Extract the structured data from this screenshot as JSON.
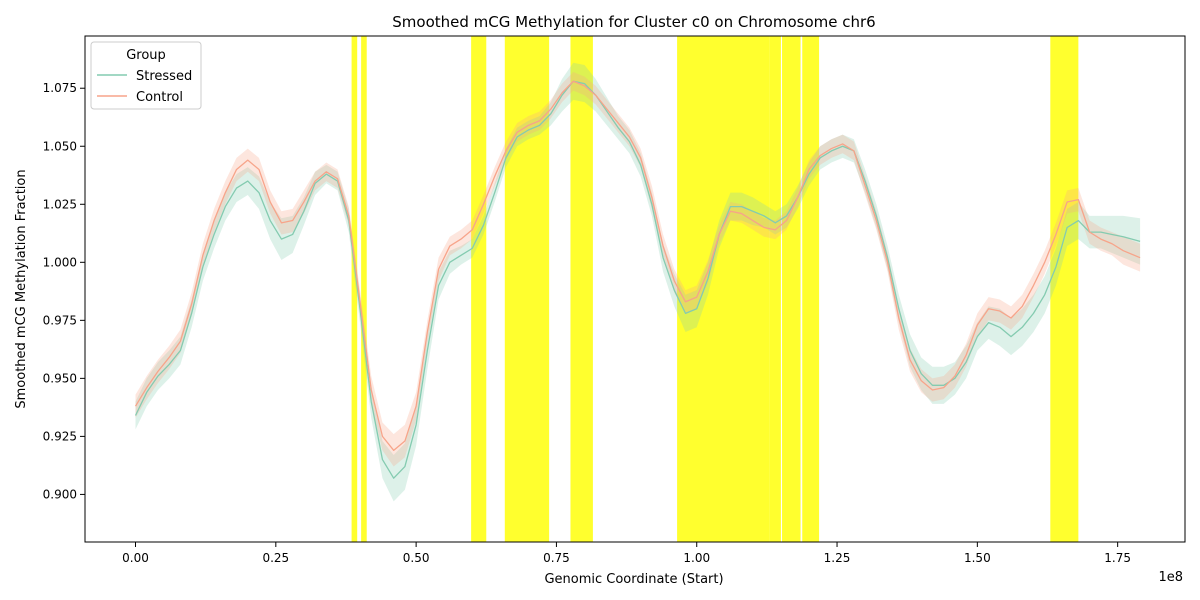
{
  "chart_data": {
    "type": "line",
    "title": "Smoothed mCG Methylation for Cluster c0 on Chromosome chr6",
    "xlabel": "Genomic Coordinate (Start)",
    "ylabel": "Smoothed mCG Methylation Fraction",
    "x_scale_label": "1e8",
    "x_multiplier": 100000000,
    "xlim": [
      -0.09,
      1.87
    ],
    "ylim": [
      0.8795,
      1.0975
    ],
    "x_ticks": [
      0.0,
      0.25,
      0.5,
      0.75,
      1.0,
      1.25,
      1.5,
      1.75
    ],
    "x_tick_labels": [
      "0.00",
      "0.25",
      "0.50",
      "0.75",
      "1.00",
      "1.25",
      "1.50",
      "1.75"
    ],
    "y_ticks": [
      0.9,
      0.925,
      0.95,
      0.975,
      1.0,
      1.025,
      1.05,
      1.075
    ],
    "y_tick_labels": [
      "0.900",
      "0.925",
      "0.950",
      "0.975",
      "1.000",
      "1.025",
      "1.050",
      "1.075"
    ],
    "grid": false,
    "legend": {
      "title": "Group",
      "placement": "top-left"
    },
    "highlight_color": "#ffff00",
    "highlight_regions": [
      [
        0.385,
        0.395
      ],
      [
        0.402,
        0.412
      ],
      [
        0.598,
        0.625
      ],
      [
        0.658,
        0.737
      ],
      [
        0.775,
        0.815
      ],
      [
        0.965,
        1.13
      ],
      [
        1.13,
        1.15
      ],
      [
        1.152,
        1.185
      ],
      [
        1.188,
        1.218
      ],
      [
        1.63,
        1.68
      ]
    ],
    "series": [
      {
        "name": "Stressed",
        "color": "#84cbb0",
        "x": [
          0.0,
          0.02,
          0.04,
          0.06,
          0.08,
          0.1,
          0.12,
          0.14,
          0.16,
          0.18,
          0.2,
          0.22,
          0.24,
          0.26,
          0.28,
          0.3,
          0.32,
          0.34,
          0.36,
          0.38,
          0.4,
          0.42,
          0.44,
          0.46,
          0.48,
          0.5,
          0.52,
          0.54,
          0.56,
          0.58,
          0.6,
          0.62,
          0.64,
          0.66,
          0.68,
          0.7,
          0.72,
          0.74,
          0.76,
          0.78,
          0.8,
          0.82,
          0.84,
          0.86,
          0.88,
          0.9,
          0.92,
          0.94,
          0.96,
          0.98,
          1.0,
          1.02,
          1.04,
          1.06,
          1.08,
          1.1,
          1.12,
          1.14,
          1.16,
          1.18,
          1.2,
          1.22,
          1.24,
          1.26,
          1.28,
          1.3,
          1.32,
          1.34,
          1.36,
          1.38,
          1.4,
          1.42,
          1.44,
          1.46,
          1.48,
          1.5,
          1.52,
          1.54,
          1.56,
          1.58,
          1.6,
          1.62,
          1.64,
          1.66,
          1.68,
          1.7,
          1.72,
          1.74,
          1.76,
          1.79
        ],
        "values": [
          0.934,
          0.944,
          0.951,
          0.956,
          0.962,
          0.978,
          0.998,
          1.012,
          1.024,
          1.032,
          1.035,
          1.03,
          1.018,
          1.01,
          1.012,
          1.022,
          1.034,
          1.038,
          1.035,
          1.018,
          0.98,
          0.94,
          0.915,
          0.907,
          0.912,
          0.93,
          0.962,
          0.99,
          1.0,
          1.003,
          1.006,
          1.016,
          1.03,
          1.045,
          1.054,
          1.057,
          1.059,
          1.064,
          1.072,
          1.078,
          1.077,
          1.072,
          1.065,
          1.058,
          1.052,
          1.042,
          1.025,
          1.002,
          0.988,
          0.978,
          0.98,
          0.993,
          1.012,
          1.024,
          1.024,
          1.022,
          1.02,
          1.017,
          1.02,
          1.028,
          1.038,
          1.045,
          1.048,
          1.05,
          1.048,
          1.035,
          1.02,
          1.002,
          0.98,
          0.962,
          0.952,
          0.947,
          0.947,
          0.95,
          0.957,
          0.968,
          0.974,
          0.972,
          0.968,
          0.972,
          0.978,
          0.986,
          0.998,
          1.015,
          1.018,
          1.013,
          1.013,
          1.012,
          1.011,
          1.009
        ],
        "ci_halfwidth": [
          0.006,
          0.006,
          0.006,
          0.006,
          0.006,
          0.006,
          0.006,
          0.006,
          0.006,
          0.006,
          0.006,
          0.007,
          0.008,
          0.009,
          0.008,
          0.006,
          0.005,
          0.004,
          0.004,
          0.005,
          0.006,
          0.007,
          0.008,
          0.01,
          0.01,
          0.009,
          0.008,
          0.006,
          0.005,
          0.004,
          0.004,
          0.004,
          0.004,
          0.004,
          0.004,
          0.004,
          0.004,
          0.005,
          0.007,
          0.008,
          0.008,
          0.007,
          0.006,
          0.005,
          0.005,
          0.005,
          0.005,
          0.006,
          0.007,
          0.008,
          0.008,
          0.007,
          0.006,
          0.006,
          0.006,
          0.006,
          0.005,
          0.005,
          0.005,
          0.005,
          0.005,
          0.005,
          0.005,
          0.005,
          0.005,
          0.005,
          0.005,
          0.005,
          0.006,
          0.007,
          0.007,
          0.008,
          0.008,
          0.007,
          0.007,
          0.006,
          0.007,
          0.008,
          0.008,
          0.008,
          0.008,
          0.008,
          0.008,
          0.008,
          0.008,
          0.007,
          0.007,
          0.008,
          0.009,
          0.01
        ]
      },
      {
        "name": "Control",
        "color": "#f7a48a",
        "x": [
          0.0,
          0.02,
          0.04,
          0.06,
          0.08,
          0.1,
          0.12,
          0.14,
          0.16,
          0.18,
          0.2,
          0.22,
          0.24,
          0.26,
          0.28,
          0.3,
          0.32,
          0.34,
          0.36,
          0.38,
          0.4,
          0.42,
          0.44,
          0.46,
          0.48,
          0.5,
          0.52,
          0.54,
          0.56,
          0.58,
          0.6,
          0.62,
          0.64,
          0.66,
          0.68,
          0.7,
          0.72,
          0.74,
          0.76,
          0.78,
          0.8,
          0.82,
          0.84,
          0.86,
          0.88,
          0.9,
          0.92,
          0.94,
          0.96,
          0.98,
          1.0,
          1.02,
          1.04,
          1.06,
          1.08,
          1.1,
          1.12,
          1.14,
          1.16,
          1.18,
          1.2,
          1.22,
          1.24,
          1.26,
          1.28,
          1.3,
          1.32,
          1.34,
          1.36,
          1.38,
          1.4,
          1.42,
          1.44,
          1.46,
          1.48,
          1.5,
          1.52,
          1.54,
          1.56,
          1.58,
          1.6,
          1.62,
          1.64,
          1.66,
          1.68,
          1.7,
          1.72,
          1.74,
          1.76,
          1.79
        ],
        "values": [
          0.938,
          0.946,
          0.953,
          0.959,
          0.966,
          0.982,
          1.003,
          1.018,
          1.03,
          1.04,
          1.044,
          1.04,
          1.026,
          1.017,
          1.018,
          1.026,
          1.035,
          1.039,
          1.036,
          1.02,
          0.983,
          0.945,
          0.925,
          0.919,
          0.923,
          0.938,
          0.97,
          0.997,
          1.007,
          1.01,
          1.014,
          1.025,
          1.037,
          1.048,
          1.056,
          1.059,
          1.061,
          1.066,
          1.073,
          1.078,
          1.076,
          1.072,
          1.066,
          1.06,
          1.054,
          1.045,
          1.028,
          1.007,
          0.992,
          0.983,
          0.985,
          0.996,
          1.012,
          1.022,
          1.021,
          1.018,
          1.015,
          1.014,
          1.018,
          1.028,
          1.04,
          1.046,
          1.049,
          1.051,
          1.048,
          1.033,
          1.018,
          1.0,
          0.976,
          0.958,
          0.949,
          0.945,
          0.946,
          0.951,
          0.96,
          0.973,
          0.98,
          0.979,
          0.976,
          0.981,
          0.99,
          1.0,
          1.012,
          1.026,
          1.027,
          1.013,
          1.01,
          1.008,
          1.005,
          1.002
        ],
        "ci_halfwidth": [
          0.005,
          0.005,
          0.005,
          0.005,
          0.005,
          0.005,
          0.005,
          0.005,
          0.005,
          0.005,
          0.005,
          0.005,
          0.005,
          0.005,
          0.005,
          0.005,
          0.004,
          0.004,
          0.004,
          0.004,
          0.005,
          0.006,
          0.006,
          0.007,
          0.007,
          0.006,
          0.005,
          0.005,
          0.004,
          0.004,
          0.004,
          0.004,
          0.004,
          0.004,
          0.004,
          0.004,
          0.004,
          0.004,
          0.004,
          0.004,
          0.004,
          0.004,
          0.004,
          0.004,
          0.004,
          0.004,
          0.005,
          0.005,
          0.005,
          0.005,
          0.005,
          0.005,
          0.004,
          0.004,
          0.004,
          0.004,
          0.004,
          0.004,
          0.004,
          0.004,
          0.004,
          0.004,
          0.004,
          0.004,
          0.004,
          0.004,
          0.004,
          0.004,
          0.005,
          0.005,
          0.005,
          0.005,
          0.005,
          0.005,
          0.005,
          0.005,
          0.005,
          0.005,
          0.005,
          0.005,
          0.005,
          0.005,
          0.005,
          0.005,
          0.005,
          0.005,
          0.005,
          0.005,
          0.006,
          0.006
        ]
      }
    ]
  }
}
